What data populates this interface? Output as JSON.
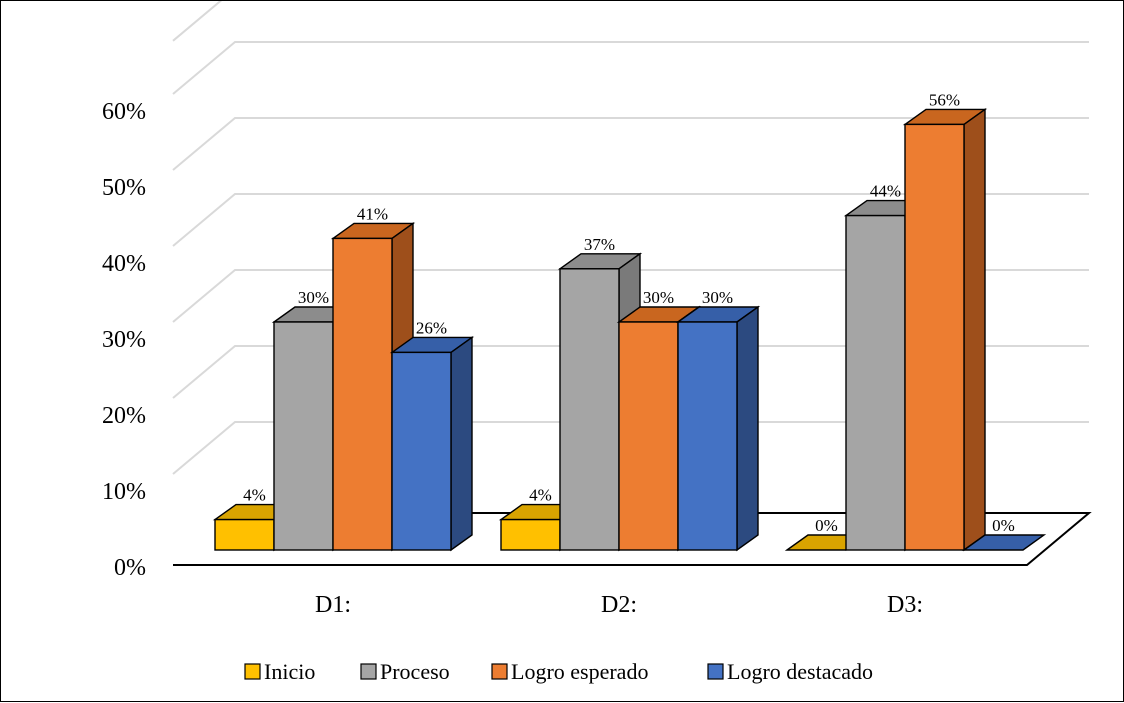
{
  "chart_data": {
    "type": "bar",
    "style": "3d-clustered-column",
    "categories": [
      "D1:",
      "D2:",
      "D3:"
    ],
    "series": [
      {
        "name": "Inicio",
        "values": [
          4,
          4,
          0
        ],
        "labels": [
          "4%",
          "4%",
          "0%"
        ],
        "color": "#FFC000",
        "side_color": "#C19700",
        "top_color": "#D9A400"
      },
      {
        "name": "Proceso",
        "values": [
          30,
          37,
          44
        ],
        "labels": [
          "30%",
          "37%",
          "44%"
        ],
        "color": "#A5A5A5",
        "side_color": "#7A7A7A",
        "top_color": "#8C8C8C"
      },
      {
        "name": "Logro esperado",
        "values": [
          41,
          30,
          56
        ],
        "labels": [
          "41%",
          "30%",
          "56%"
        ],
        "color": "#ED7D31",
        "side_color": "#9E4F1B",
        "top_color": "#C9661F"
      },
      {
        "name": "Logro destacado",
        "values": [
          26,
          30,
          0
        ],
        "labels": [
          "26%",
          "30%",
          "0%"
        ],
        "color": "#4472C4",
        "side_color": "#2C4A80",
        "top_color": "#365FA8"
      }
    ],
    "yticks": [
      "0%",
      "10%",
      "20%",
      "30%",
      "40%",
      "50%",
      "60%"
    ],
    "ylim": [
      0,
      60
    ],
    "grid": true,
    "legend": "bottom"
  }
}
